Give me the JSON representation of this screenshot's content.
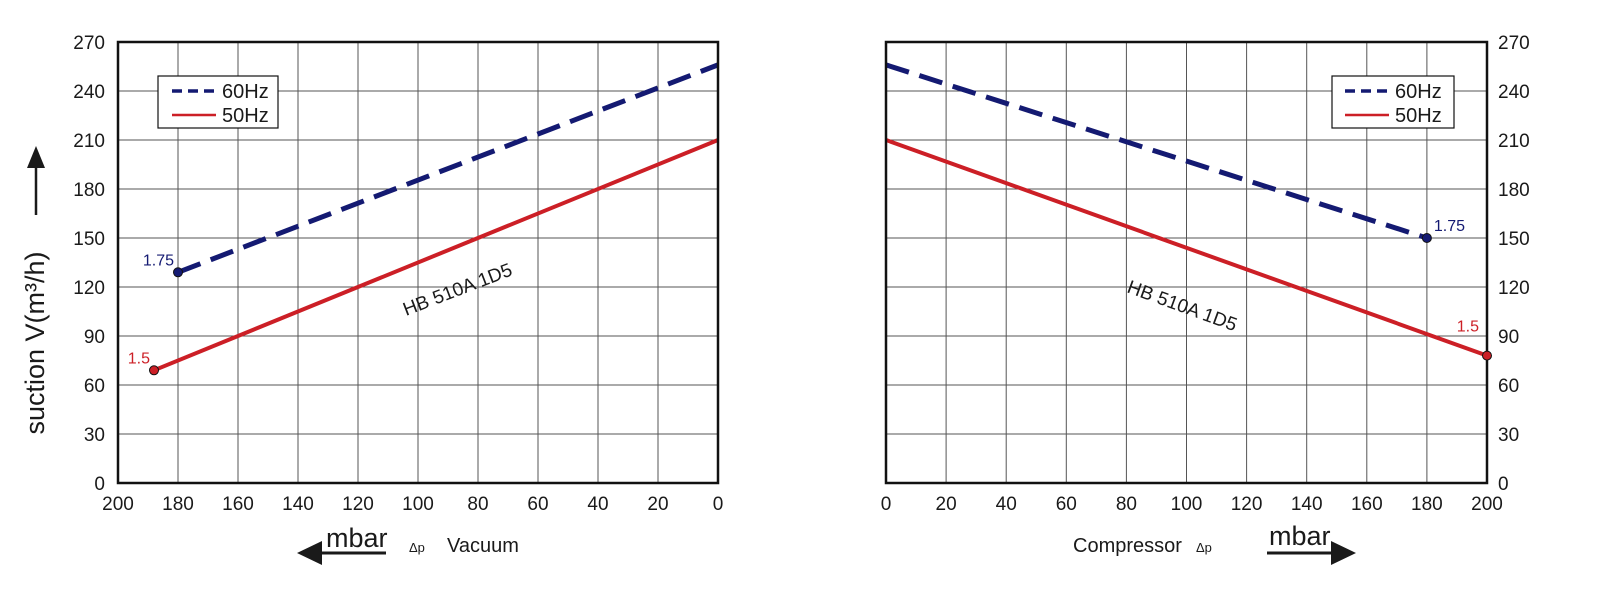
{
  "colors": {
    "hz60": "#141a72",
    "hz50": "#cc1f26",
    "grid": "#555555",
    "frame": "#111111"
  },
  "y_axis_title": "suction V(m³/h)",
  "chart_data": [
    {
      "type": "line",
      "name": "vacuum",
      "x_reversed": true,
      "xlim": [
        0,
        200
      ],
      "ylim": [
        0,
        270
      ],
      "x_ticks": [
        "200",
        "180",
        "160",
        "140",
        "120",
        "100",
        "80",
        "60",
        "40",
        "20",
        "0"
      ],
      "y_ticks": [
        "0",
        "30",
        "60",
        "90",
        "120",
        "150",
        "180",
        "210",
        "240",
        "270"
      ],
      "grid": true,
      "legend_position": "top-left",
      "x_unit": "mbar",
      "x_axis_label_delta": "Δp",
      "x_axis_label_word": "Vacuum",
      "model_label": "HB 510A 1D5",
      "series": [
        {
          "name": "60Hz",
          "style": "dashed",
          "color": "#141a72",
          "points": [
            [
              180,
              129
            ],
            [
              0,
              256
            ]
          ],
          "end_label": "1.75"
        },
        {
          "name": "50Hz",
          "style": "solid",
          "color": "#cc1f26",
          "points": [
            [
              188,
              69
            ],
            [
              0,
              210
            ]
          ],
          "end_label": "1.5"
        }
      ]
    },
    {
      "type": "line",
      "name": "compressor",
      "x_reversed": false,
      "xlim": [
        0,
        200
      ],
      "ylim": [
        0,
        270
      ],
      "x_ticks": [
        "0",
        "20",
        "40",
        "60",
        "80",
        "100",
        "120",
        "140",
        "160",
        "180",
        "200"
      ],
      "y_ticks": [
        "0",
        "30",
        "60",
        "90",
        "120",
        "150",
        "180",
        "210",
        "240",
        "270"
      ],
      "grid": true,
      "legend_position": "top-right",
      "x_unit": "mbar",
      "x_axis_label_word": "Compressor",
      "x_axis_label_delta": "Δp",
      "model_label": "HB 510A 1D5",
      "series": [
        {
          "name": "60Hz",
          "style": "dashed",
          "color": "#141a72",
          "points": [
            [
              0,
              256
            ],
            [
              180,
              150
            ]
          ],
          "end_label": "1.75"
        },
        {
          "name": "50Hz",
          "style": "solid",
          "color": "#cc1f26",
          "points": [
            [
              0,
              210
            ],
            [
              200,
              78
            ]
          ],
          "end_label": "1.5"
        }
      ]
    }
  ]
}
